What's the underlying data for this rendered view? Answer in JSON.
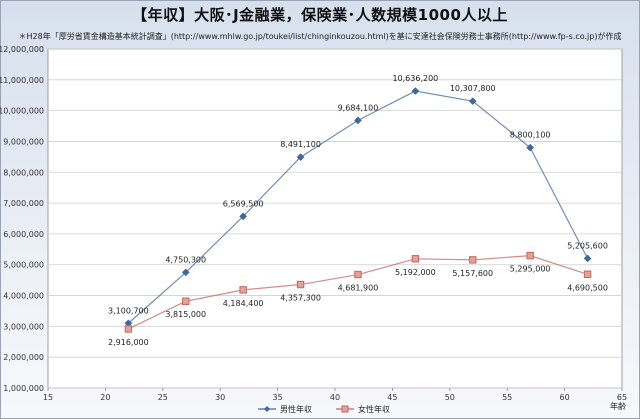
{
  "chart_data": {
    "type": "line",
    "title": "【年収】大阪･J金融業，保険業･人数規模1000人以上",
    "subtitle": "＊H28年「厚労省賃金構造基本統計調査」(http://www.mhlw.go.jp/toukei/list/chinginkouzou.html)を基に安達社会保険労務士事務所(http://www.fp-s.co.jp)が作成",
    "xlabel": "年齢",
    "ylabel": "",
    "xlim": [
      15,
      65
    ],
    "ylim": [
      1000000,
      12000000
    ],
    "x_ticks": [
      "15",
      "20",
      "25",
      "30",
      "35",
      "40",
      "45",
      "50",
      "55",
      "60",
      "65"
    ],
    "y_ticks": [
      "1,000,000",
      "2,000,000",
      "3,000,000",
      "4,000,000",
      "5,000,000",
      "6,000,000",
      "7,000,000",
      "8,000,000",
      "9,000,000",
      "10,000,000",
      "11,000,000",
      "12,000,000"
    ],
    "grid": "horizontal",
    "legend_position": "bottom",
    "series": [
      {
        "name": "男性年収",
        "color": "#41699f",
        "marker": "diamond",
        "x": [
          22,
          27,
          32,
          37,
          42,
          47,
          52,
          57,
          62
        ],
        "values": [
          3100700,
          4750300,
          6569500,
          8491100,
          9684100,
          10636200,
          10307800,
          8800100,
          5205600
        ],
        "labels": [
          "3,100,700",
          "4,750,300",
          "6,569,500",
          "8,491,100",
          "9,684,100",
          "10,636,200",
          "10,307,800",
          "8,800,100",
          "5,205,600"
        ]
      },
      {
        "name": "女性年収",
        "color": "#c4675f",
        "marker": "square",
        "x": [
          22,
          27,
          32,
          37,
          42,
          47,
          52,
          57,
          62
        ],
        "values": [
          2916000,
          3815000,
          4184400,
          4357300,
          4681900,
          5192000,
          5157600,
          5295000,
          4690500
        ],
        "labels": [
          "2,916,000",
          "3,815,000",
          "4,184,400",
          "4,357,300",
          "4,681,900",
          "5,192,000",
          "5,157,600",
          "5,295,000",
          "4,690,500"
        ]
      }
    ]
  }
}
